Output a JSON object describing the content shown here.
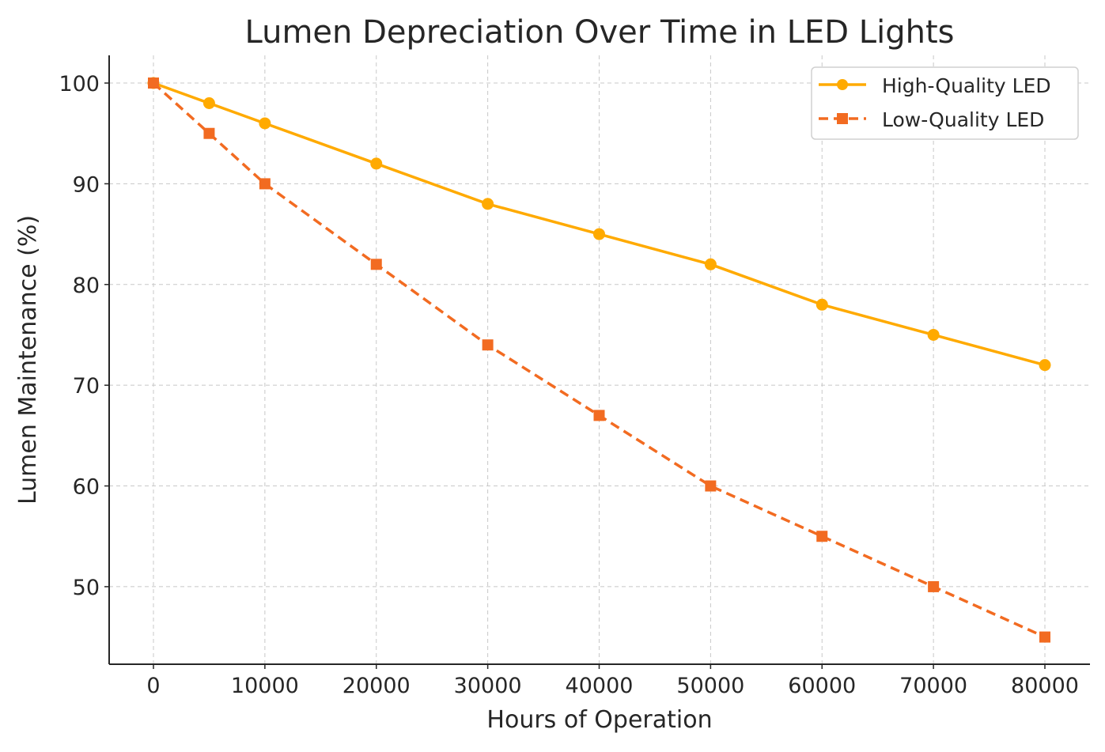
{
  "chart_data": {
    "type": "line",
    "title": "Lumen Depreciation Over Time in LED Lights",
    "xlabel": "Hours of Operation",
    "ylabel": "Lumen Maintenance (%)",
    "x": [
      0,
      5000,
      10000,
      20000,
      30000,
      40000,
      50000,
      60000,
      70000,
      80000
    ],
    "xticks": [
      "0",
      "10000",
      "20000",
      "30000",
      "40000",
      "50000",
      "60000",
      "70000",
      "80000"
    ],
    "yticks": [
      "50",
      "60",
      "70",
      "80",
      "90",
      "100"
    ],
    "xlim": [
      -3975,
      84046
    ],
    "ylim": [
      42.3,
      102.75
    ],
    "grid": true,
    "legend_position": "top-right",
    "series": [
      {
        "name": "High-Quality LED",
        "values": [
          100,
          98,
          96,
          92,
          88,
          85,
          82,
          78,
          75,
          72
        ],
        "color": "#FFAA00",
        "marker": "circle",
        "linestyle": "solid"
      },
      {
        "name": "Low-Quality LED",
        "values": [
          100,
          95,
          90,
          82,
          74,
          67,
          60,
          55,
          50,
          45
        ],
        "color": "#F26B21",
        "marker": "square",
        "linestyle": "dashed"
      }
    ]
  }
}
